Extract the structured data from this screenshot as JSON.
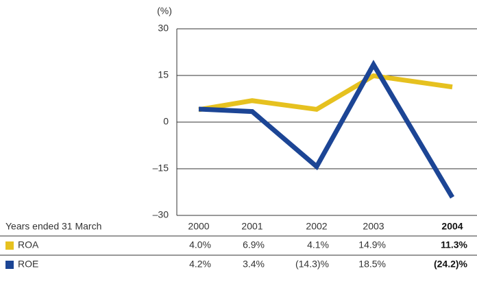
{
  "chart_data": {
    "type": "line",
    "y_label": "(%)",
    "row_header": "Years ended 31 March",
    "categories": [
      "2000",
      "2001",
      "2002",
      "2003",
      "2004"
    ],
    "series": [
      {
        "name": "ROA",
        "color": "#e6c11f",
        "values": [
          4.0,
          6.9,
          4.1,
          14.9,
          11.3
        ],
        "value_labels": [
          "4.0%",
          "6.9%",
          "4.1%",
          "14.9%",
          "11.3%"
        ]
      },
      {
        "name": "ROE",
        "color": "#1c4595",
        "values": [
          4.2,
          3.4,
          -14.3,
          18.5,
          -24.2
        ],
        "value_labels": [
          "4.2%",
          "3.4%",
          "(14.3)%",
          "18.5%",
          "(24.2)%"
        ]
      }
    ],
    "ylim": [
      -30,
      30
    ],
    "yticks": [
      {
        "value": -30,
        "label": "–30"
      },
      {
        "value": -15,
        "label": "–15"
      },
      0,
      15,
      30
    ],
    "grid": true
  }
}
